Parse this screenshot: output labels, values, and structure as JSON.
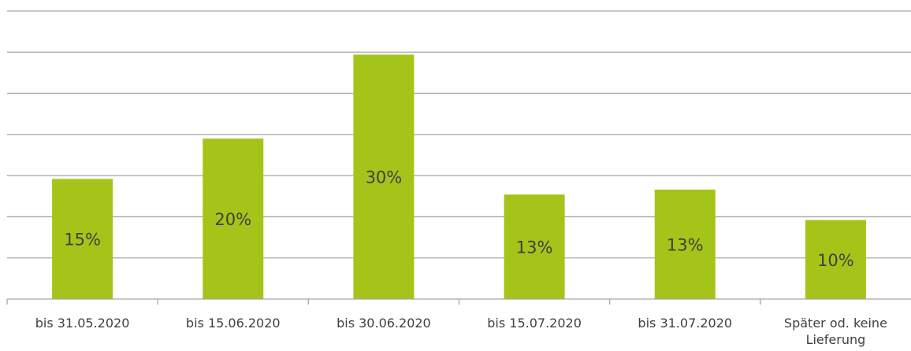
{
  "chart_data": {
    "type": "bar",
    "categories": [
      "bis 31.05.2020",
      "bis 15.06.2020",
      "bis 30.06.2020",
      "bis 15.07.2020",
      "bis 31.07.2020",
      "Später od. keine Lieferung"
    ],
    "category_label_lines": [
      [
        "bis 31.05.2020"
      ],
      [
        "bis 15.06.2020"
      ],
      [
        "bis 30.06.2020"
      ],
      [
        "bis 15.07.2020"
      ],
      [
        "bis 31.07.2020"
      ],
      [
        "Später od. keine",
        "Lieferung"
      ]
    ],
    "values": [
      15,
      20,
      30,
      13,
      13,
      10
    ],
    "bar_heights": [
      14.6,
      19.5,
      29.7,
      12.7,
      13.3,
      9.6
    ],
    "data_labels": [
      "15%",
      "20%",
      "30%",
      "13%",
      "13%",
      "10%"
    ],
    "ylim": [
      0,
      35
    ],
    "grid_step": 5,
    "grid": true,
    "bar_color": "#a5c419",
    "grid_color": "#a6a6a6",
    "text_color": "#3f3f3f"
  }
}
